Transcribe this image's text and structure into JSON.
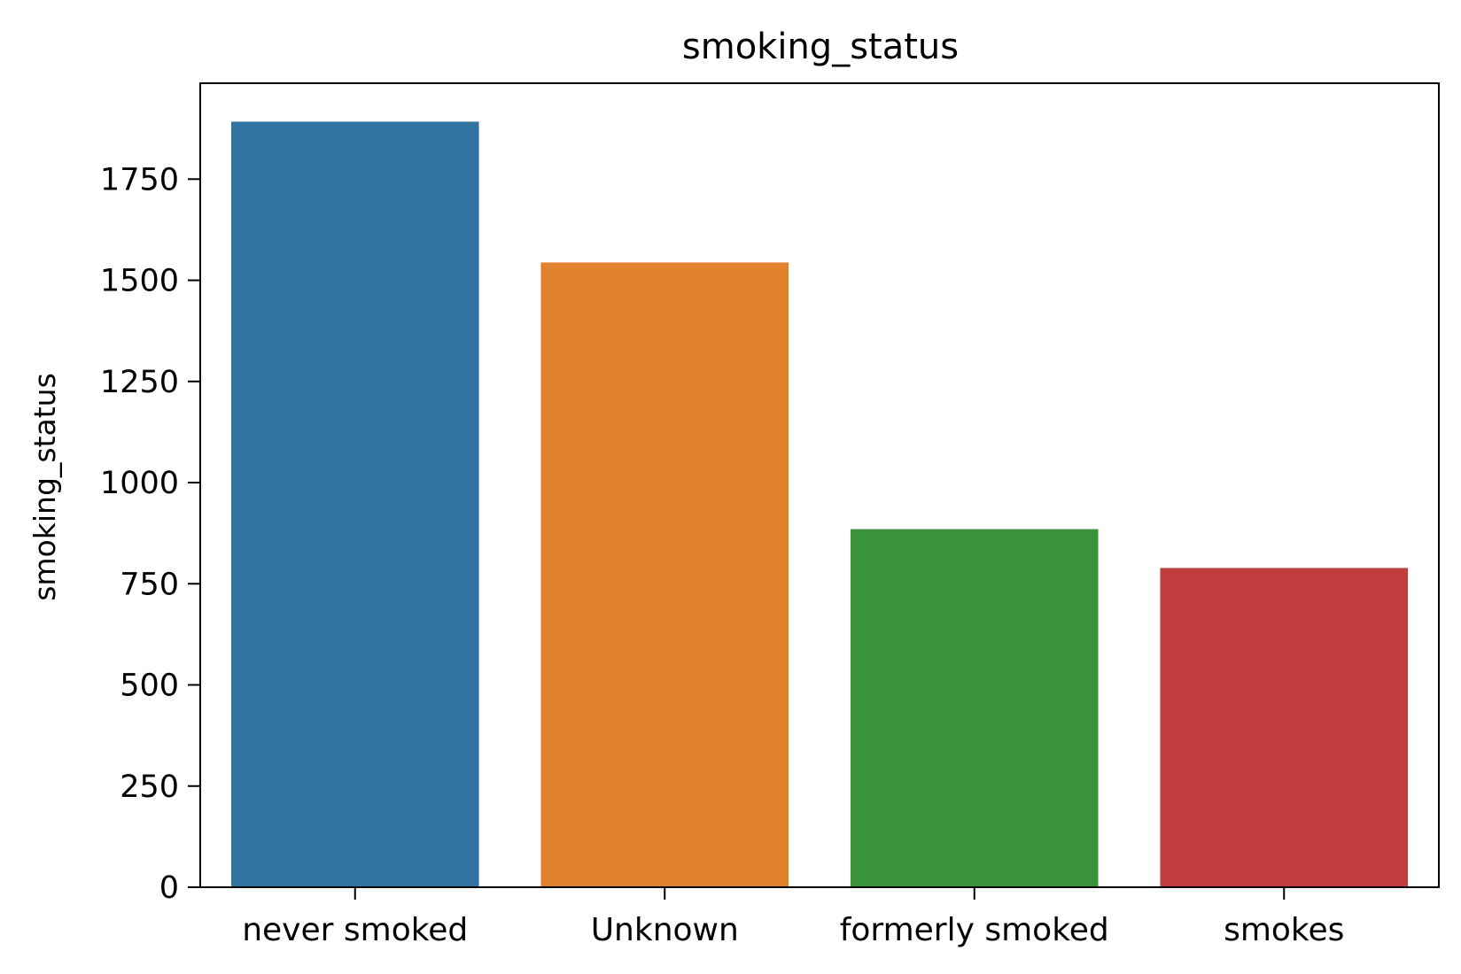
{
  "chart_data": {
    "type": "bar",
    "title": "smoking_status",
    "xlabel": "",
    "ylabel": "smoking_status",
    "categories": [
      "never smoked",
      "Unknown",
      "formerly smoked",
      "smokes"
    ],
    "values": [
      1892,
      1544,
      885,
      789
    ],
    "colors": [
      "#3274a1",
      "#e1812c",
      "#3a923a",
      "#c03d3e"
    ],
    "yticks": [
      "0",
      "250",
      "500",
      "750",
      "1000",
      "1250",
      "1500",
      "1750"
    ],
    "ylim": [
      0,
      1987
    ],
    "grid": false,
    "legend": "none"
  }
}
